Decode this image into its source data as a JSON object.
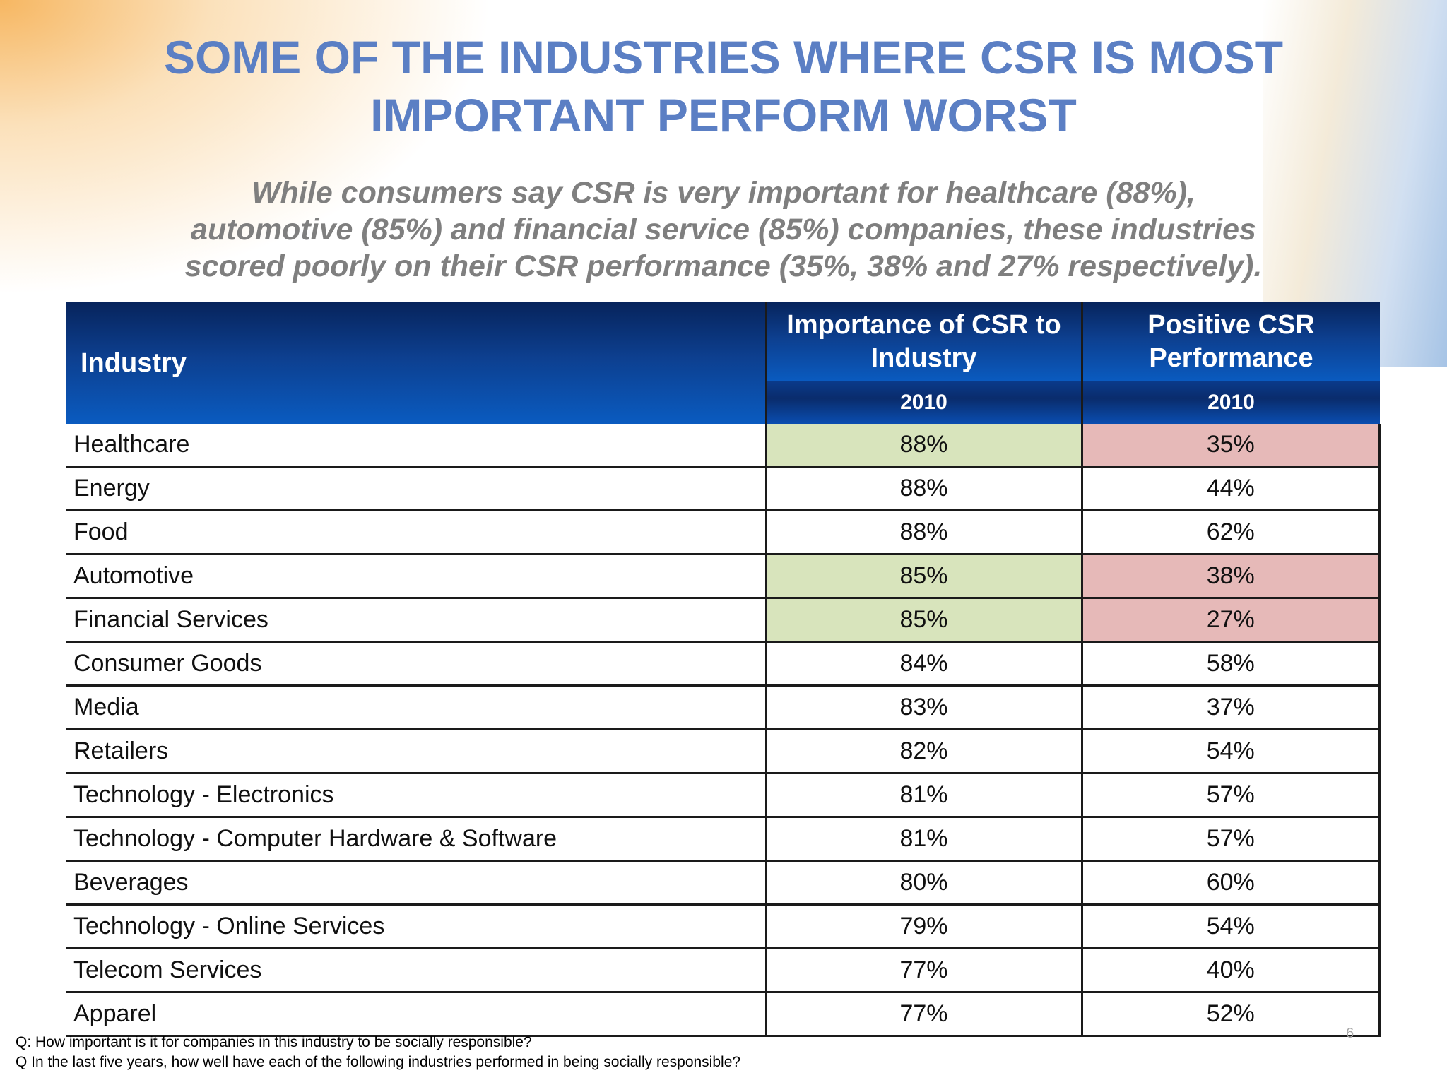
{
  "title": {
    "line1": "SOME OF THE INDUSTRIES WHERE CSR IS MOST",
    "line2": "IMPORTANT PERFORM WORST"
  },
  "subtitle": {
    "line1": "While consumers say CSR is very important for healthcare (88%),",
    "line2": "automotive (85%) and financial service (85%) companies, these industries",
    "line3": "scored poorly on their CSR performance (35%, 38% and 27% respectively)."
  },
  "colors": {
    "title": "#5b7fc4",
    "header_blue": "#0d3f8f",
    "highlight_green": "#d8e4bc",
    "highlight_red": "#e6b9b8"
  },
  "chart_data": {
    "type": "table",
    "columns": {
      "industry": "Industry",
      "importance": "Importance of CSR to Industry",
      "performance": "Positive CSR Performance",
      "year_importance": "2010",
      "year_performance": "2010"
    },
    "rows": [
      {
        "industry": "Healthcare",
        "importance": "88%",
        "performance": "35%",
        "highlight": true
      },
      {
        "industry": "Energy",
        "importance": "88%",
        "performance": "44%",
        "highlight": false
      },
      {
        "industry": "Food",
        "importance": "88%",
        "performance": "62%",
        "highlight": false
      },
      {
        "industry": "Automotive",
        "importance": "85%",
        "performance": "38%",
        "highlight": true
      },
      {
        "industry": "Financial Services",
        "importance": "85%",
        "performance": "27%",
        "highlight": true
      },
      {
        "industry": "Consumer Goods",
        "importance": "84%",
        "performance": "58%",
        "highlight": false
      },
      {
        "industry": "Media",
        "importance": "83%",
        "performance": "37%",
        "highlight": false
      },
      {
        "industry": "Retailers",
        "importance": "82%",
        "performance": "54%",
        "highlight": false
      },
      {
        "industry": "Technology - Electronics",
        "importance": "81%",
        "performance": "57%",
        "highlight": false
      },
      {
        "industry": "Technology - Computer Hardware & Software",
        "importance": "81%",
        "performance": "57%",
        "highlight": false
      },
      {
        "industry": "Beverages",
        "importance": "80%",
        "performance": "60%",
        "highlight": false
      },
      {
        "industry": "Technology - Online Services",
        "importance": "79%",
        "performance": "54%",
        "highlight": false
      },
      {
        "industry": "Telecom Services",
        "importance": "77%",
        "performance": "40%",
        "highlight": false
      },
      {
        "industry": "Apparel",
        "importance": "77%",
        "performance": "52%",
        "highlight": false
      }
    ]
  },
  "footnotes": {
    "q1": "Q: How important is it for companies in this industry to be socially responsible?",
    "q2": "Q In the last five years, how well have each of the following industries performed in being socially responsible?"
  },
  "page_number": "6"
}
